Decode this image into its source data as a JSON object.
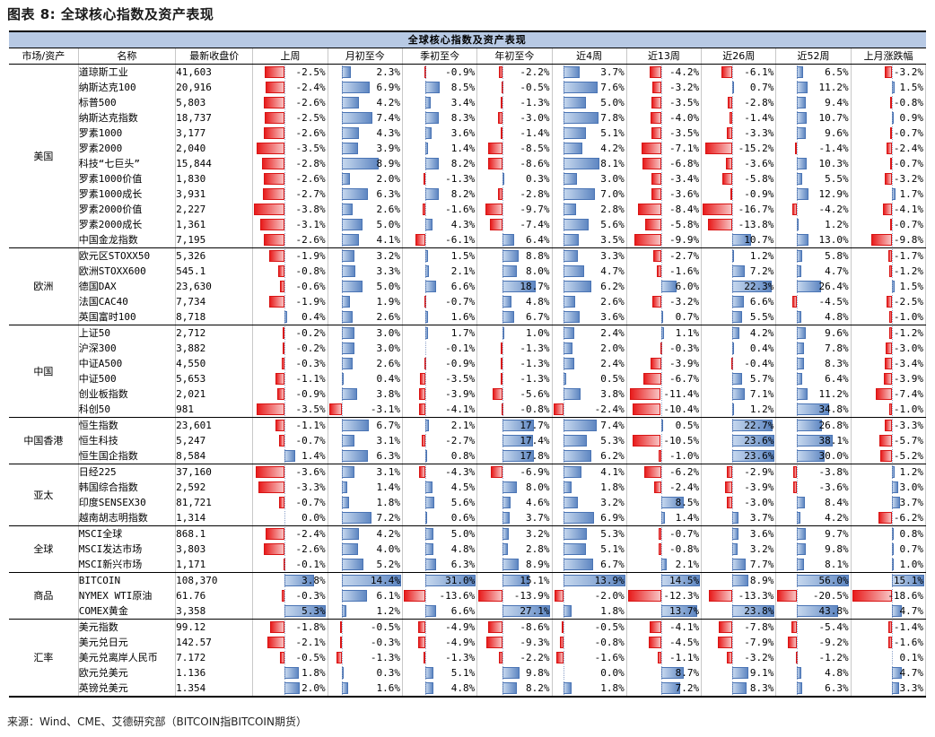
{
  "title": "图表 8: 全球核心指数及资产表现",
  "banner": "全球核心指数及资产表现",
  "headers": [
    "市场/资产",
    "名称",
    "最新收盘价",
    "上周",
    "月初至今",
    "季初至今",
    "年初至今",
    "近4周",
    "近13周",
    "近26周",
    "近52周",
    "上月涨跌幅"
  ],
  "colors": {
    "positive_bar": "#5f87c2",
    "negative_bar": "#e81c1c",
    "banner_bg": "#b7c9e4"
  },
  "groups": [
    {
      "region": "美国",
      "rows": [
        {
          "name": "道琼斯工业",
          "price": "41,603",
          "v": [
            -2.5,
            2.3,
            -0.9,
            -2.2,
            3.7,
            -4.2,
            -6.1,
            6.5,
            -3.2
          ]
        },
        {
          "name": "纳斯达克100",
          "price": "20,916",
          "v": [
            -2.4,
            6.9,
            8.5,
            -0.5,
            7.6,
            -3.2,
            0.7,
            11.2,
            1.5
          ]
        },
        {
          "name": "标普500",
          "price": "5,803",
          "v": [
            -2.6,
            4.2,
            3.4,
            -1.3,
            5.0,
            -3.5,
            -2.8,
            9.4,
            -0.8
          ]
        },
        {
          "name": "纳斯达克指数",
          "price": "18,737",
          "v": [
            -2.5,
            7.4,
            8.3,
            -3.0,
            7.8,
            -4.0,
            -1.4,
            10.7,
            0.9
          ]
        },
        {
          "name": "罗素1000",
          "price": "3,177",
          "v": [
            -2.6,
            4.3,
            3.6,
            -1.4,
            5.1,
            -3.5,
            -3.3,
            9.6,
            -0.7
          ]
        },
        {
          "name": "罗素2000",
          "price": "2,040",
          "v": [
            -3.5,
            3.9,
            1.4,
            -8.5,
            4.2,
            -7.1,
            -15.2,
            -1.4,
            -2.4
          ]
        },
        {
          "name": "科技“七巨头”",
          "price": "15,844",
          "v": [
            -2.8,
            8.9,
            8.2,
            -8.6,
            8.1,
            -6.8,
            -3.6,
            10.3,
            -0.7
          ]
        },
        {
          "name": "罗素1000价值",
          "price": "1,830",
          "v": [
            -2.6,
            2.0,
            -1.3,
            0.3,
            3.0,
            -3.4,
            -5.8,
            5.5,
            -3.2
          ]
        },
        {
          "name": "罗素1000成长",
          "price": "3,931",
          "v": [
            -2.7,
            6.3,
            8.2,
            -2.8,
            7.0,
            -3.6,
            -0.9,
            12.9,
            1.7
          ]
        },
        {
          "name": "罗素2000价值",
          "price": "2,227",
          "v": [
            -3.8,
            2.6,
            -1.6,
            -9.7,
            2.8,
            -8.4,
            -16.7,
            -4.2,
            -4.1
          ]
        },
        {
          "name": "罗素2000成长",
          "price": "1,361",
          "v": [
            -3.1,
            5.0,
            4.3,
            -7.4,
            5.6,
            -5.8,
            -13.8,
            1.2,
            -0.7
          ]
        },
        {
          "name": "中国金龙指数",
          "price": "7,195",
          "v": [
            -2.6,
            4.1,
            -6.1,
            6.4,
            3.5,
            -9.9,
            10.7,
            13.0,
            -9.8
          ]
        }
      ]
    },
    {
      "region": "欧洲",
      "rows": [
        {
          "name": "欧元区STOXX50",
          "price": "5,326",
          "v": [
            -1.9,
            3.2,
            1.5,
            8.8,
            3.3,
            -2.7,
            1.2,
            5.8,
            -1.7
          ]
        },
        {
          "name": "欧洲STOXX600",
          "price": "545.1",
          "v": [
            -0.8,
            3.3,
            2.1,
            8.0,
            4.7,
            -1.6,
            7.2,
            4.7,
            -1.2
          ]
        },
        {
          "name": "德国DAX",
          "price": "23,630",
          "v": [
            -0.6,
            5.0,
            6.6,
            18.7,
            6.2,
            6.0,
            22.3,
            26.4,
            1.5
          ]
        },
        {
          "name": "法国CAC40",
          "price": "7,734",
          "v": [
            -1.9,
            1.9,
            -0.7,
            4.8,
            2.6,
            -3.2,
            6.6,
            -4.5,
            -2.5
          ]
        },
        {
          "name": "英国富时100",
          "price": "8,718",
          "v": [
            0.4,
            2.6,
            1.6,
            6.7,
            3.6,
            0.7,
            5.5,
            4.8,
            -1.0
          ]
        }
      ]
    },
    {
      "region": "中国",
      "rows": [
        {
          "name": "上证50",
          "price": "2,712",
          "v": [
            -0.2,
            3.0,
            1.7,
            1.0,
            2.4,
            1.1,
            4.2,
            9.6,
            -1.2
          ]
        },
        {
          "name": "沪深300",
          "price": "3,882",
          "v": [
            -0.2,
            3.0,
            -0.1,
            -1.3,
            2.0,
            -0.3,
            0.4,
            7.8,
            -3.0
          ]
        },
        {
          "name": "中证A500",
          "price": "4,550",
          "v": [
            -0.3,
            2.6,
            -0.9,
            -1.3,
            2.4,
            -3.9,
            -0.4,
            8.3,
            -3.4
          ]
        },
        {
          "name": "中证500",
          "price": "5,653",
          "v": [
            -1.1,
            0.4,
            -3.5,
            -1.3,
            0.5,
            -6.7,
            5.7,
            6.4,
            -3.9
          ]
        },
        {
          "name": "创业板指数",
          "price": "2,021",
          "v": [
            -0.9,
            3.8,
            -3.9,
            -5.6,
            3.8,
            -11.4,
            7.1,
            11.2,
            -7.4
          ]
        },
        {
          "name": "科创50",
          "price": "981",
          "v": [
            -3.5,
            -3.1,
            -4.1,
            -0.8,
            -2.4,
            -10.4,
            1.2,
            34.8,
            -1.0
          ]
        }
      ]
    },
    {
      "region": "中国香港",
      "rows": [
        {
          "name": "恒生指数",
          "price": "23,601",
          "v": [
            -1.1,
            6.7,
            2.1,
            17.7,
            7.4,
            0.5,
            22.7,
            26.8,
            -3.3
          ]
        },
        {
          "name": "恒生科技",
          "price": "5,247",
          "v": [
            -0.7,
            3.1,
            -2.7,
            17.4,
            5.3,
            -10.5,
            23.6,
            38.1,
            -5.7
          ]
        },
        {
          "name": "恒生国企指数",
          "price": "8,584",
          "v": [
            1.4,
            6.3,
            0.8,
            17.8,
            6.2,
            -1.0,
            23.6,
            30.0,
            -5.2
          ]
        }
      ]
    },
    {
      "region": "亚太",
      "rows": [
        {
          "name": "日经225",
          "price": "37,160",
          "v": [
            -3.6,
            3.1,
            -4.3,
            -6.9,
            4.1,
            -6.2,
            -2.9,
            -3.8,
            1.2
          ]
        },
        {
          "name": "韩国综合指数",
          "price": "2,592",
          "v": [
            -3.3,
            1.4,
            4.5,
            8.0,
            1.8,
            -2.4,
            -3.9,
            -3.6,
            3.0
          ]
        },
        {
          "name": "印度SENSEX30",
          "price": "81,721",
          "v": [
            -0.7,
            1.8,
            5.6,
            4.6,
            3.2,
            8.5,
            -3.0,
            8.4,
            3.7
          ]
        },
        {
          "name": "越南胡志明指数",
          "price": "1,314",
          "v": [
            0.0,
            7.2,
            0.6,
            3.7,
            6.9,
            1.4,
            3.7,
            4.2,
            -6.2
          ]
        }
      ]
    },
    {
      "region": "全球",
      "rows": [
        {
          "name": "MSCI全球",
          "price": "868.1",
          "v": [
            -2.4,
            4.2,
            5.0,
            3.2,
            5.3,
            -0.7,
            3.6,
            9.7,
            0.8
          ]
        },
        {
          "name": "MSCI发达市场",
          "price": "3,803",
          "v": [
            -2.6,
            4.0,
            4.8,
            2.8,
            5.1,
            -0.8,
            3.2,
            9.8,
            0.7
          ]
        },
        {
          "name": "MSCI新兴市场",
          "price": "1,171",
          "v": [
            -0.1,
            5.2,
            6.3,
            8.9,
            6.7,
            2.1,
            7.7,
            8.1,
            1.0
          ]
        }
      ]
    },
    {
      "region": "商品",
      "rows": [
        {
          "name": "BITCOIN",
          "price": "108,370",
          "v": [
            3.8,
            14.4,
            31.0,
            15.1,
            13.9,
            14.5,
            8.9,
            56.0,
            15.1
          ]
        },
        {
          "name": "NYMEX WTI原油",
          "price": "61.76",
          "v": [
            -0.3,
            6.1,
            -13.6,
            -13.9,
            -2.0,
            -12.3,
            -13.3,
            -20.5,
            -18.6
          ]
        },
        {
          "name": "COMEX黄金",
          "price": "3,358",
          "v": [
            5.3,
            1.2,
            6.6,
            27.1,
            1.8,
            13.7,
            23.8,
            43.8,
            4.7
          ]
        }
      ]
    },
    {
      "region": "汇率",
      "rows": [
        {
          "name": "美元指数",
          "price": "99.12",
          "v": [
            -1.8,
            -0.5,
            -4.9,
            -8.6,
            -0.5,
            -4.1,
            -7.8,
            -5.4,
            -1.4
          ]
        },
        {
          "name": "美元兑日元",
          "price": "142.57",
          "v": [
            -2.1,
            -0.3,
            -4.9,
            -9.3,
            -0.8,
            -4.5,
            -7.9,
            -9.2,
            -1.6
          ]
        },
        {
          "name": "美元兑离岸人民币",
          "price": "7.172",
          "v": [
            -0.5,
            -1.3,
            -1.3,
            -2.2,
            -1.6,
            -1.1,
            -3.2,
            -1.2,
            0.1
          ]
        },
        {
          "name": "欧元兑美元",
          "price": "1.136",
          "v": [
            1.8,
            0.3,
            5.1,
            9.8,
            0.0,
            8.7,
            9.1,
            4.8,
            4.7
          ]
        },
        {
          "name": "英镑兑美元",
          "price": "1.354",
          "v": [
            2.0,
            1.6,
            4.8,
            8.2,
            1.8,
            7.2,
            8.3,
            6.3,
            3.3
          ]
        }
      ]
    }
  ],
  "footer": "来源：Wind、CME、艾德研究部（BITCOIN指BITCOIN期货）"
}
